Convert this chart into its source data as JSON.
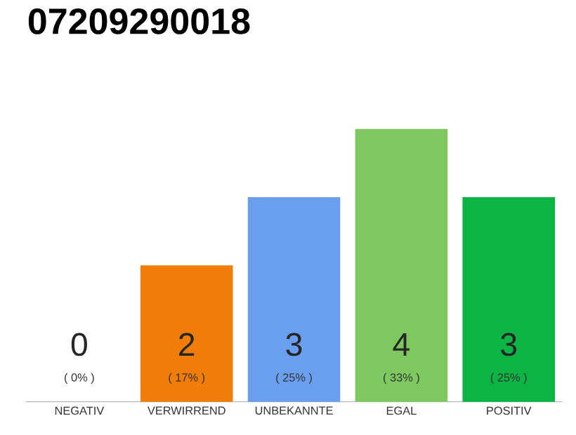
{
  "chart_data": {
    "type": "bar",
    "title": "07209290018",
    "categories": [
      "NEGATIV",
      "VERWIRREND",
      "UNBEKANNTE",
      "EGAL",
      "POSITIV"
    ],
    "values": [
      0,
      2,
      3,
      4,
      3
    ],
    "colors": [
      "#9e9e9e",
      "#f07d0a",
      "#6a9fef",
      "#7dc960",
      "#0cb444"
    ],
    "value_labels": [
      "0",
      "2",
      "3",
      "4",
      "3"
    ],
    "annotations": [
      "( 0% )",
      "( 17% )",
      "( 25% )",
      "( 33% )",
      "( 25% )"
    ],
    "tick_labels": "x"
  }
}
